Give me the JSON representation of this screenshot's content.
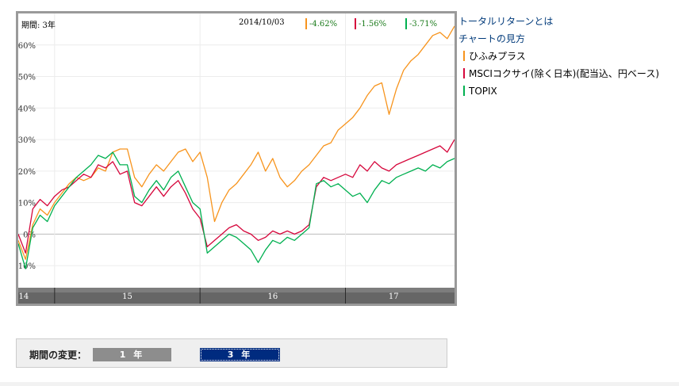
{
  "chart_header": {
    "period": "期間: 3年",
    "date": "2014/10/03",
    "deltas": [
      {
        "text": "-4.62%",
        "color": "#f7941d"
      },
      {
        "text": "-1.56%",
        "color": "#d6073c"
      },
      {
        "text": "-3.71%",
        "color": "#00b050"
      }
    ]
  },
  "side_links": [
    "トータルリターンとは",
    "チャートの見方"
  ],
  "legend": [
    {
      "label": "ひふみプラス",
      "color": "#f7941d"
    },
    {
      "label": "MSCIコクサイ(除く日本)(配当込、円ベース)",
      "color": "#d6073c"
    },
    {
      "label": "TOPIX",
      "color": "#00b050"
    }
  ],
  "controls": {
    "label": "期間の変更：",
    "buttons": [
      {
        "label": "1 年",
        "selected": false
      },
      {
        "label": "3 年",
        "selected": true
      }
    ]
  },
  "chart_data": {
    "type": "line",
    "yticks": [
      "60%",
      "50%",
      "40%",
      "30%",
      "20%",
      "10%",
      "0%",
      "-10%"
    ],
    "ytick_values": [
      60,
      50,
      40,
      30,
      20,
      10,
      0,
      -10
    ],
    "ylim": [
      -17,
      70
    ],
    "xlim": [
      2014.75,
      2017.75
    ],
    "x_bands": [
      "14",
      "15",
      "16",
      "17"
    ],
    "x_band_dividers": [
      2015.0,
      2016.0,
      2017.0
    ],
    "grid": true,
    "series": [
      {
        "name": "ひふみプラス",
        "color": "#f7941d",
        "points": [
          [
            2014.75,
            -2
          ],
          [
            2014.8,
            -8
          ],
          [
            2014.85,
            3
          ],
          [
            2014.9,
            8
          ],
          [
            2014.95,
            6
          ],
          [
            2015.0,
            10
          ],
          [
            2015.05,
            13
          ],
          [
            2015.1,
            16
          ],
          [
            2015.15,
            18
          ],
          [
            2015.2,
            17
          ],
          [
            2015.25,
            18
          ],
          [
            2015.3,
            21
          ],
          [
            2015.35,
            20
          ],
          [
            2015.4,
            26
          ],
          [
            2015.45,
            27
          ],
          [
            2015.5,
            27
          ],
          [
            2015.55,
            18
          ],
          [
            2015.6,
            15
          ],
          [
            2015.65,
            19
          ],
          [
            2015.7,
            22
          ],
          [
            2015.75,
            20
          ],
          [
            2015.8,
            23
          ],
          [
            2015.85,
            26
          ],
          [
            2015.9,
            27
          ],
          [
            2015.95,
            23
          ],
          [
            2016.0,
            26
          ],
          [
            2016.05,
            18
          ],
          [
            2016.1,
            4
          ],
          [
            2016.15,
            10
          ],
          [
            2016.2,
            14
          ],
          [
            2016.25,
            16
          ],
          [
            2016.3,
            19
          ],
          [
            2016.35,
            22
          ],
          [
            2016.4,
            26
          ],
          [
            2016.45,
            20
          ],
          [
            2016.5,
            24
          ],
          [
            2016.55,
            18
          ],
          [
            2016.6,
            15
          ],
          [
            2016.65,
            17
          ],
          [
            2016.7,
            20
          ],
          [
            2016.75,
            22
          ],
          [
            2016.8,
            25
          ],
          [
            2016.85,
            28
          ],
          [
            2016.9,
            29
          ],
          [
            2016.95,
            33
          ],
          [
            2017.0,
            35
          ],
          [
            2017.05,
            37
          ],
          [
            2017.1,
            40
          ],
          [
            2017.15,
            44
          ],
          [
            2017.2,
            47
          ],
          [
            2017.25,
            48
          ],
          [
            2017.3,
            38
          ],
          [
            2017.35,
            46
          ],
          [
            2017.4,
            52
          ],
          [
            2017.45,
            55
          ],
          [
            2017.5,
            57
          ],
          [
            2017.55,
            60
          ],
          [
            2017.6,
            63
          ],
          [
            2017.65,
            64
          ],
          [
            2017.7,
            62
          ],
          [
            2017.75,
            66
          ]
        ]
      },
      {
        "name": "MSCIコクサイ(除く日本)(配当込、円ベース)",
        "color": "#d6073c",
        "points": [
          [
            2014.75,
            0
          ],
          [
            2014.8,
            -6
          ],
          [
            2014.85,
            8
          ],
          [
            2014.9,
            11
          ],
          [
            2014.95,
            9
          ],
          [
            2015.0,
            12
          ],
          [
            2015.05,
            14
          ],
          [
            2015.1,
            15
          ],
          [
            2015.15,
            17
          ],
          [
            2015.2,
            19
          ],
          [
            2015.25,
            18
          ],
          [
            2015.3,
            22
          ],
          [
            2015.35,
            21
          ],
          [
            2015.4,
            23
          ],
          [
            2015.45,
            19
          ],
          [
            2015.5,
            20
          ],
          [
            2015.55,
            10
          ],
          [
            2015.6,
            9
          ],
          [
            2015.65,
            12
          ],
          [
            2015.7,
            15
          ],
          [
            2015.75,
            12
          ],
          [
            2015.8,
            15
          ],
          [
            2015.85,
            17
          ],
          [
            2015.9,
            13
          ],
          [
            2015.95,
            8
          ],
          [
            2016.0,
            5
          ],
          [
            2016.05,
            -4
          ],
          [
            2016.1,
            -2
          ],
          [
            2016.15,
            0
          ],
          [
            2016.2,
            2
          ],
          [
            2016.25,
            3
          ],
          [
            2016.3,
            1
          ],
          [
            2016.35,
            0
          ],
          [
            2016.4,
            -2
          ],
          [
            2016.45,
            -1
          ],
          [
            2016.5,
            1
          ],
          [
            2016.55,
            0
          ],
          [
            2016.6,
            1
          ],
          [
            2016.65,
            0
          ],
          [
            2016.7,
            1
          ],
          [
            2016.75,
            3
          ],
          [
            2016.8,
            15
          ],
          [
            2016.85,
            18
          ],
          [
            2016.9,
            17
          ],
          [
            2016.95,
            18
          ],
          [
            2017.0,
            19
          ],
          [
            2017.05,
            18
          ],
          [
            2017.1,
            22
          ],
          [
            2017.15,
            20
          ],
          [
            2017.2,
            23
          ],
          [
            2017.25,
            21
          ],
          [
            2017.3,
            20
          ],
          [
            2017.35,
            22
          ],
          [
            2017.4,
            23
          ],
          [
            2017.45,
            24
          ],
          [
            2017.5,
            25
          ],
          [
            2017.55,
            26
          ],
          [
            2017.6,
            27
          ],
          [
            2017.65,
            28
          ],
          [
            2017.7,
            26
          ],
          [
            2017.75,
            30
          ]
        ]
      },
      {
        "name": "TOPIX",
        "color": "#00b050",
        "points": [
          [
            2014.75,
            -3
          ],
          [
            2014.8,
            -11
          ],
          [
            2014.85,
            2
          ],
          [
            2014.9,
            6
          ],
          [
            2014.95,
            4
          ],
          [
            2015.0,
            9
          ],
          [
            2015.05,
            12
          ],
          [
            2015.1,
            15
          ],
          [
            2015.15,
            18
          ],
          [
            2015.2,
            20
          ],
          [
            2015.25,
            22
          ],
          [
            2015.3,
            25
          ],
          [
            2015.35,
            24
          ],
          [
            2015.4,
            26
          ],
          [
            2015.45,
            22
          ],
          [
            2015.5,
            22
          ],
          [
            2015.55,
            12
          ],
          [
            2015.6,
            10
          ],
          [
            2015.65,
            14
          ],
          [
            2015.7,
            17
          ],
          [
            2015.75,
            14
          ],
          [
            2015.8,
            18
          ],
          [
            2015.85,
            20
          ],
          [
            2015.9,
            15
          ],
          [
            2015.95,
            10
          ],
          [
            2016.0,
            8
          ],
          [
            2016.05,
            -6
          ],
          [
            2016.1,
            -4
          ],
          [
            2016.15,
            -2
          ],
          [
            2016.2,
            0
          ],
          [
            2016.25,
            -1
          ],
          [
            2016.3,
            -3
          ],
          [
            2016.35,
            -5
          ],
          [
            2016.4,
            -9
          ],
          [
            2016.45,
            -5
          ],
          [
            2016.5,
            -2
          ],
          [
            2016.55,
            -3
          ],
          [
            2016.6,
            -1
          ],
          [
            2016.65,
            -2
          ],
          [
            2016.7,
            0
          ],
          [
            2016.75,
            2
          ],
          [
            2016.8,
            16
          ],
          [
            2016.85,
            17
          ],
          [
            2016.9,
            15
          ],
          [
            2016.95,
            16
          ],
          [
            2017.0,
            14
          ],
          [
            2017.05,
            12
          ],
          [
            2017.1,
            13
          ],
          [
            2017.15,
            10
          ],
          [
            2017.2,
            14
          ],
          [
            2017.25,
            17
          ],
          [
            2017.3,
            16
          ],
          [
            2017.35,
            18
          ],
          [
            2017.4,
            19
          ],
          [
            2017.45,
            20
          ],
          [
            2017.5,
            21
          ],
          [
            2017.55,
            20
          ],
          [
            2017.6,
            22
          ],
          [
            2017.65,
            21
          ],
          [
            2017.7,
            23
          ],
          [
            2017.75,
            24
          ]
        ]
      }
    ]
  }
}
